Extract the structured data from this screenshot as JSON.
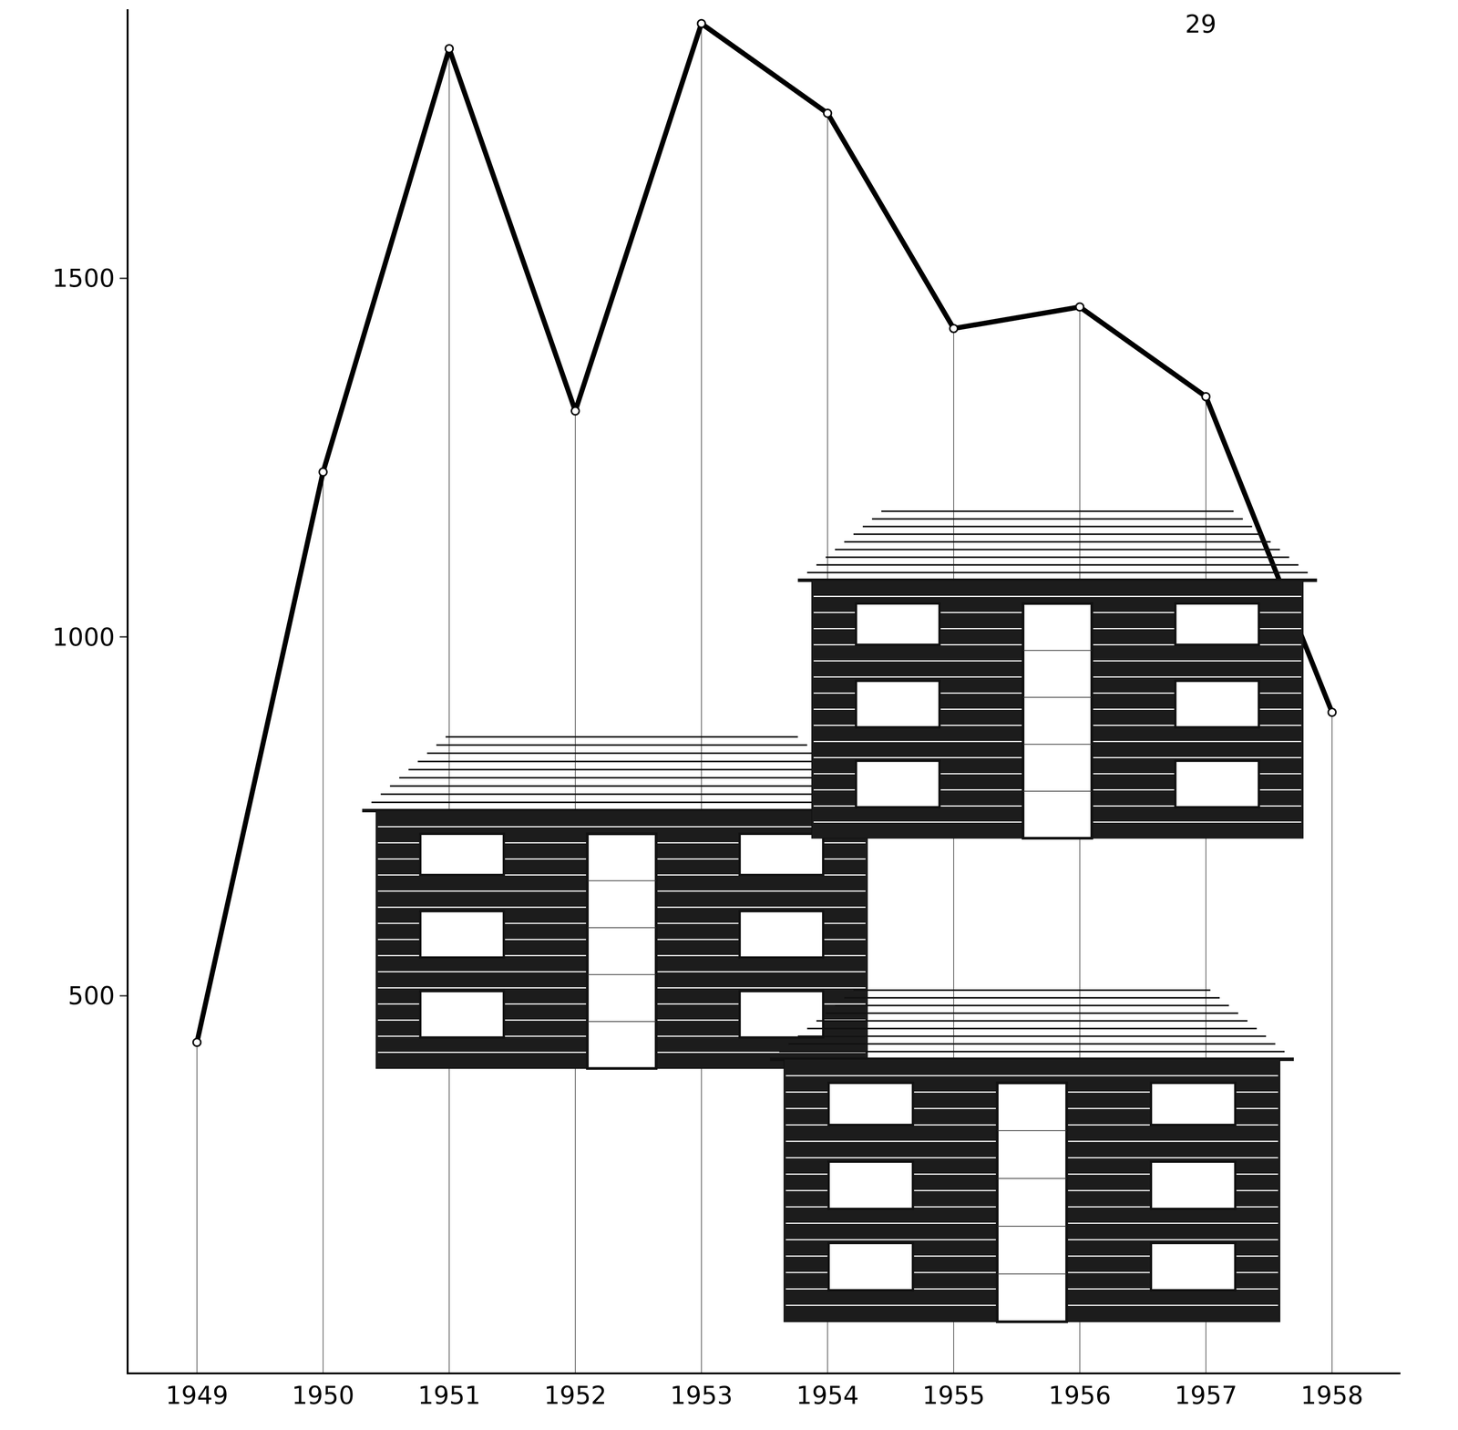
{
  "chart_data": {
    "type": "line",
    "categories": [
      "1949",
      "1950",
      "1951",
      "1952",
      "1953",
      "1954",
      "1955",
      "1956",
      "1957",
      "1958"
    ],
    "values": [
      435,
      1230,
      1820,
      1315,
      1855,
      1730,
      1430,
      1460,
      1335,
      895
    ],
    "color": "#000000",
    "marker": "circle",
    "line_style": "solid",
    "ylim": [
      -25,
      1875
    ],
    "yticks": [
      500,
      1000,
      1500
    ],
    "grid": false,
    "annotations": [
      "29"
    ]
  }
}
